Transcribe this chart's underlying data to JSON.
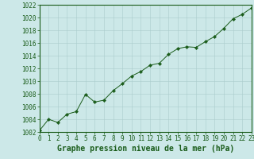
{
  "x": [
    0,
    1,
    2,
    3,
    4,
    5,
    6,
    7,
    8,
    9,
    10,
    11,
    12,
    13,
    14,
    15,
    16,
    17,
    18,
    19,
    20,
    21,
    22,
    23
  ],
  "y": [
    1002.2,
    1004.0,
    1003.5,
    1004.8,
    1005.2,
    1007.9,
    1006.7,
    1007.0,
    1008.5,
    1009.6,
    1010.8,
    1011.5,
    1012.5,
    1012.8,
    1014.2,
    1015.1,
    1015.4,
    1015.3,
    1016.2,
    1017.0,
    1018.3,
    1019.8,
    1020.5,
    1021.5
  ],
  "line_color": "#1a5c1a",
  "marker": "D",
  "marker_size": 2.2,
  "bg_color": "#cce8e8",
  "grid_color": "#aacccc",
  "xlabel": "Graphe pression niveau de la mer (hPa)",
  "xlim": [
    0,
    23
  ],
  "ylim": [
    1002,
    1022
  ],
  "yticks": [
    1002,
    1004,
    1006,
    1008,
    1010,
    1012,
    1014,
    1016,
    1018,
    1020,
    1022
  ],
  "xticks": [
    0,
    1,
    2,
    3,
    4,
    5,
    6,
    7,
    8,
    9,
    10,
    11,
    12,
    13,
    14,
    15,
    16,
    17,
    18,
    19,
    20,
    21,
    22,
    23
  ],
  "tick_color": "#1a5c1a",
  "label_fontsize": 5.5,
  "xlabel_fontsize": 7,
  "spine_color": "#1a5c1a"
}
